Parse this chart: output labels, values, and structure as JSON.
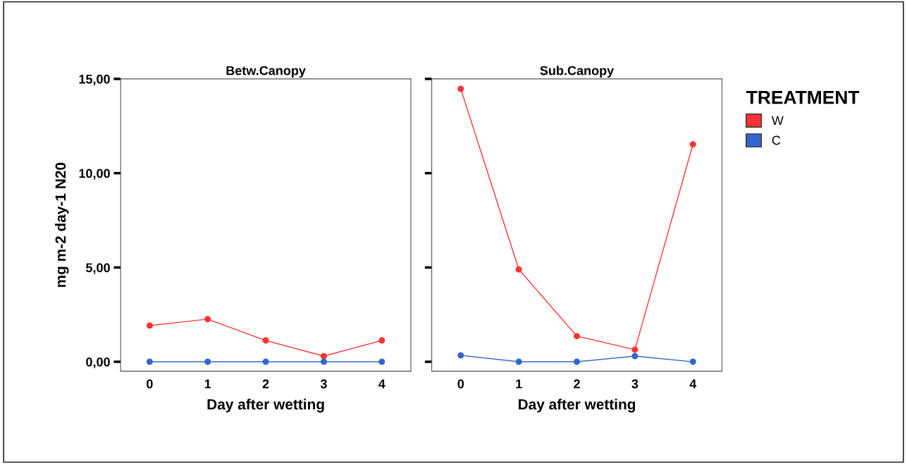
{
  "chart_data": [
    {
      "type": "line",
      "title": "Betw.Canopy",
      "xlabel": "Day after wetting",
      "ylabel": "mg m-2 day-1 N20",
      "categories": [
        "0",
        "1",
        "2",
        "3",
        "4"
      ],
      "ylim": [
        -0.5,
        15
      ],
      "yticks": [
        {
          "value": 0,
          "label": "0,00"
        },
        {
          "value": 5,
          "label": "5,00"
        },
        {
          "value": 10,
          "label": "10,00"
        },
        {
          "value": 15,
          "label": "15,00"
        }
      ],
      "marker": "circle",
      "grid": false,
      "legend": "right",
      "legend_title": "TREATMENT",
      "series": [
        {
          "name": "W",
          "color": "#ff3333",
          "values": [
            1.92,
            2.26,
            1.13,
            0.3,
            1.13
          ]
        },
        {
          "name": "C",
          "color": "#3366cc",
          "values": [
            0,
            0,
            0,
            0,
            0
          ]
        }
      ]
    },
    {
      "type": "line",
      "title": "Sub.Canopy",
      "xlabel": "Day after wetting",
      "categories": [
        "0",
        "1",
        "2",
        "3",
        "4"
      ],
      "ylim": [
        -0.5,
        15
      ],
      "yticks": [
        {
          "value": 0,
          "label": null
        },
        {
          "value": 5,
          "label": null
        },
        {
          "value": 10,
          "label": null
        },
        {
          "value": 15,
          "label": null
        }
      ],
      "tick_labels": "x",
      "marker": "circle",
      "grid": false,
      "series": [
        {
          "color": "#ff3333",
          "values": [
            14.47,
            4.9,
            1.36,
            0.64,
            11.53
          ]
        },
        {
          "color": "#3366cc",
          "values": [
            0.34,
            0,
            0,
            0.3,
            0
          ]
        }
      ]
    }
  ]
}
